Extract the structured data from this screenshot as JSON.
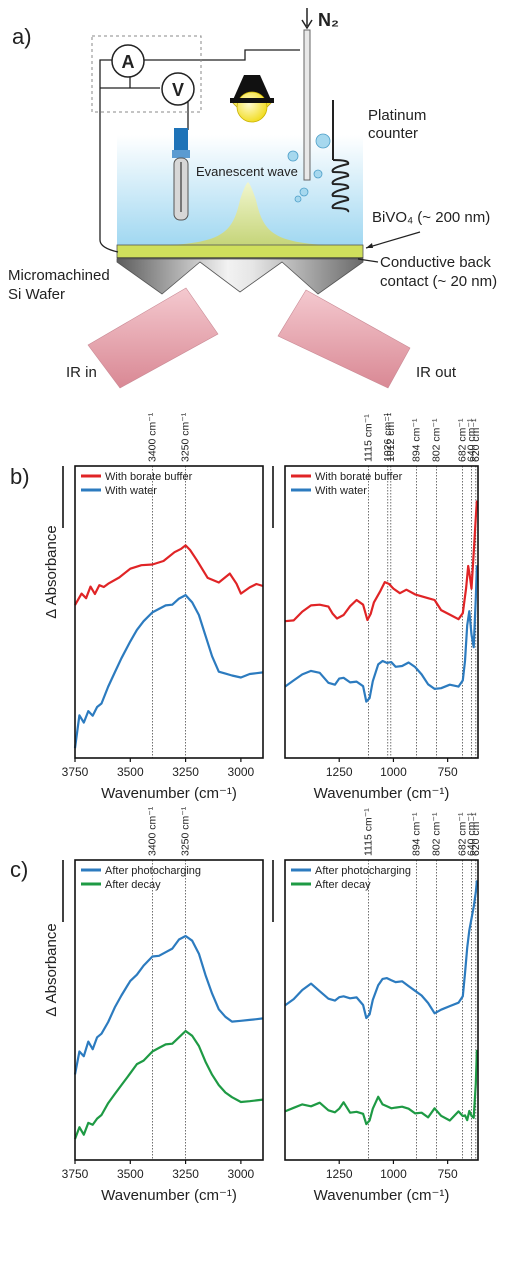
{
  "panels": {
    "a": "a)",
    "b": "b)",
    "c": "c)"
  },
  "schematic": {
    "ammeter": "A",
    "voltmeter": "V",
    "gas": "N₂",
    "counter": [
      "Platinum",
      "counter"
    ],
    "wave": "Evanescent wave",
    "film": "BiVO₄ (~ 200 nm)",
    "contact": [
      "Conductive back",
      "contact (~ 20 nm)"
    ],
    "wafer": [
      "Micromachined",
      "Si Wafer"
    ],
    "ir_in": "IR in",
    "ir_out": "IR out",
    "colors": {
      "liquid": "#bfe6f7",
      "film": "#cfdf5c",
      "lamp": "#f2e23a",
      "beam": "#e7a5ae",
      "electrode": "#1e73b8"
    }
  },
  "chart_data": [
    {
      "id": "b-left",
      "type": "line",
      "xlim": [
        3750,
        2900
      ],
      "xticks": [
        3750,
        3500,
        3250,
        3000
      ],
      "xlabel": "Wavenumber (cm⁻¹)",
      "ylabel": "Δ Absorbance",
      "scale_bar": true,
      "ref_lines": [
        {
          "x": 3400,
          "label": "3400 cm⁻¹"
        },
        {
          "x": 3250,
          "label": "3250 cm⁻¹"
        }
      ],
      "legend": {
        "position": "top-left"
      },
      "series": [
        {
          "name": "With borate buffer",
          "color": "#e02426",
          "x": [
            3750,
            3720,
            3700,
            3680,
            3660,
            3640,
            3620,
            3600,
            3550,
            3500,
            3450,
            3400,
            3350,
            3300,
            3270,
            3250,
            3230,
            3200,
            3150,
            3100,
            3050,
            3020,
            3000,
            2960,
            2930,
            2900
          ],
          "y": [
            0.56,
            0.6,
            0.58,
            0.62,
            0.6,
            0.63,
            0.62,
            0.64,
            0.66,
            0.69,
            0.7,
            0.71,
            0.72,
            0.75,
            0.77,
            0.78,
            0.76,
            0.72,
            0.66,
            0.64,
            0.67,
            0.64,
            0.6,
            0.62,
            0.63,
            0.63
          ]
        },
        {
          "name": "With water",
          "color": "#2c7bbf",
          "x": [
            3750,
            3730,
            3710,
            3690,
            3670,
            3650,
            3630,
            3600,
            3570,
            3540,
            3500,
            3470,
            3440,
            3400,
            3370,
            3340,
            3310,
            3280,
            3250,
            3220,
            3190,
            3160,
            3130,
            3100,
            3070,
            3040,
            3000,
            2960,
            2930,
            2900
          ],
          "y": [
            0.02,
            0.14,
            0.12,
            0.16,
            0.14,
            0.18,
            0.19,
            0.25,
            0.3,
            0.36,
            0.42,
            0.46,
            0.5,
            0.53,
            0.54,
            0.55,
            0.56,
            0.58,
            0.59,
            0.57,
            0.52,
            0.44,
            0.36,
            0.31,
            0.3,
            0.29,
            0.29,
            0.3,
            0.3,
            0.3
          ]
        }
      ]
    },
    {
      "id": "b-right",
      "type": "line",
      "xlim": [
        1500,
        610
      ],
      "xticks": [
        1250,
        1000,
        750
      ],
      "xlabel": "Wavenumber (cm⁻¹)",
      "scale_bar": true,
      "ref_lines": [
        {
          "x": 1115,
          "label": "1115 cm⁻¹"
        },
        {
          "x": 1026,
          "label": "1026 cm⁻¹"
        },
        {
          "x": 1012,
          "label": "1012 cm⁻¹"
        },
        {
          "x": 894,
          "label": "894 cm⁻¹"
        },
        {
          "x": 802,
          "label": "802 cm⁻¹"
        },
        {
          "x": 682,
          "label": "682 cm⁻¹"
        },
        {
          "x": 640,
          "label": "640 cm⁻¹"
        },
        {
          "x": 620,
          "label": "620 cm⁻¹"
        }
      ],
      "legend": {
        "position": "top-left"
      },
      "series": [
        {
          "name": "With borate buffer",
          "color": "#e02426",
          "x": [
            1500,
            1460,
            1420,
            1380,
            1340,
            1300,
            1280,
            1260,
            1230,
            1200,
            1170,
            1140,
            1120,
            1105,
            1090,
            1060,
            1040,
            1020,
            1000,
            970,
            940,
            900,
            870,
            840,
            810,
            780,
            740,
            700,
            680,
            665,
            655,
            648,
            640,
            630,
            620,
            615
          ],
          "y": [
            0.5,
            0.5,
            0.53,
            0.55,
            0.56,
            0.55,
            0.52,
            0.51,
            0.52,
            0.55,
            0.57,
            0.56,
            0.5,
            0.52,
            0.57,
            0.61,
            0.64,
            0.63,
            0.62,
            0.6,
            0.61,
            0.6,
            0.59,
            0.58,
            0.57,
            0.54,
            0.52,
            0.5,
            0.53,
            0.62,
            0.7,
            0.66,
            0.62,
            0.75,
            0.88,
            0.95
          ]
        },
        {
          "name": "With water",
          "color": "#2c7bbf",
          "x": [
            1500,
            1460,
            1420,
            1380,
            1340,
            1300,
            1270,
            1250,
            1230,
            1200,
            1170,
            1140,
            1125,
            1110,
            1095,
            1070,
            1050,
            1030,
            1010,
            990,
            960,
            930,
            900,
            870,
            840,
            810,
            780,
            740,
            700,
            680,
            670,
            660,
            650,
            640,
            630,
            620,
            615
          ],
          "y": [
            0.25,
            0.27,
            0.3,
            0.31,
            0.3,
            0.27,
            0.26,
            0.28,
            0.28,
            0.27,
            0.27,
            0.25,
            0.2,
            0.21,
            0.27,
            0.33,
            0.35,
            0.34,
            0.34,
            0.33,
            0.33,
            0.34,
            0.32,
            0.3,
            0.26,
            0.24,
            0.25,
            0.26,
            0.25,
            0.27,
            0.35,
            0.48,
            0.53,
            0.45,
            0.4,
            0.58,
            0.7
          ]
        }
      ]
    },
    {
      "id": "c-left",
      "type": "line",
      "xlim": [
        3750,
        2900
      ],
      "xticks": [
        3750,
        3500,
        3250,
        3000
      ],
      "xlabel": "Wavenumber (cm⁻¹)",
      "ylabel": "Δ Absorbance",
      "scale_bar": true,
      "ref_lines": [
        {
          "x": 3400,
          "label": "3400 cm⁻¹"
        },
        {
          "x": 3250,
          "label": "3250 cm⁻¹"
        }
      ],
      "legend": {
        "position": "top-left"
      },
      "series": [
        {
          "name": "After photocharging",
          "color": "#2c7bbf",
          "x": [
            3750,
            3730,
            3710,
            3690,
            3670,
            3650,
            3630,
            3600,
            3570,
            3540,
            3500,
            3470,
            3440,
            3400,
            3370,
            3340,
            3310,
            3280,
            3250,
            3220,
            3190,
            3160,
            3130,
            3100,
            3070,
            3040,
            3000,
            2960,
            2930,
            2900
          ],
          "y": [
            0.3,
            0.38,
            0.36,
            0.41,
            0.39,
            0.43,
            0.44,
            0.49,
            0.54,
            0.58,
            0.63,
            0.66,
            0.69,
            0.72,
            0.73,
            0.74,
            0.75,
            0.78,
            0.8,
            0.78,
            0.73,
            0.66,
            0.59,
            0.53,
            0.5,
            0.49,
            0.49,
            0.49,
            0.5,
            0.5
          ]
        },
        {
          "name": "After decay",
          "color": "#1e9a44",
          "x": [
            3750,
            3730,
            3710,
            3690,
            3670,
            3650,
            3630,
            3600,
            3570,
            3540,
            3500,
            3470,
            3440,
            3400,
            3370,
            3340,
            3310,
            3280,
            3250,
            3220,
            3190,
            3160,
            3130,
            3100,
            3070,
            3040,
            3000,
            2960,
            2930,
            2900
          ],
          "y": [
            0.06,
            0.1,
            0.08,
            0.12,
            0.11,
            0.14,
            0.15,
            0.19,
            0.22,
            0.26,
            0.3,
            0.33,
            0.35,
            0.38,
            0.39,
            0.4,
            0.41,
            0.43,
            0.45,
            0.44,
            0.4,
            0.34,
            0.29,
            0.26,
            0.23,
            0.21,
            0.2,
            0.2,
            0.2,
            0.2
          ]
        }
      ]
    },
    {
      "id": "c-right",
      "type": "line",
      "xlim": [
        1500,
        610
      ],
      "xticks": [
        1250,
        1000,
        750
      ],
      "xlabel": "Wavenumber (cm⁻¹)",
      "scale_bar": true,
      "ref_lines": [
        {
          "x": 1115,
          "label": "1115 cm⁻¹"
        },
        {
          "x": 894,
          "label": "894 cm⁻¹"
        },
        {
          "x": 802,
          "label": "802 cm⁻¹"
        },
        {
          "x": 682,
          "label": "682 cm⁻¹"
        },
        {
          "x": 640,
          "label": "640 cm⁻¹"
        },
        {
          "x": 620,
          "label": "620 cm⁻¹"
        }
      ],
      "legend": {
        "position": "top-left"
      },
      "series": [
        {
          "name": "After photocharging",
          "color": "#2c7bbf",
          "x": [
            1500,
            1460,
            1420,
            1380,
            1340,
            1300,
            1270,
            1250,
            1230,
            1200,
            1170,
            1140,
            1125,
            1110,
            1095,
            1070,
            1050,
            1030,
            1010,
            990,
            960,
            930,
            900,
            870,
            840,
            810,
            780,
            740,
            700,
            680,
            670,
            660,
            650,
            640,
            630,
            620,
            615
          ],
          "y": [
            0.55,
            0.57,
            0.6,
            0.62,
            0.6,
            0.57,
            0.56,
            0.58,
            0.58,
            0.57,
            0.57,
            0.55,
            0.5,
            0.51,
            0.57,
            0.62,
            0.64,
            0.64,
            0.64,
            0.63,
            0.63,
            0.62,
            0.6,
            0.58,
            0.55,
            0.52,
            0.53,
            0.54,
            0.56,
            0.58,
            0.66,
            0.75,
            0.82,
            0.86,
            0.9,
            0.96,
            1.0
          ]
        },
        {
          "name": "After decay",
          "color": "#1e9a44",
          "x": [
            1500,
            1460,
            1420,
            1380,
            1340,
            1300,
            1270,
            1250,
            1230,
            1200,
            1170,
            1140,
            1125,
            1110,
            1095,
            1070,
            1050,
            1030,
            1010,
            990,
            960,
            930,
            900,
            870,
            840,
            810,
            780,
            740,
            700,
            680,
            670,
            660,
            650,
            640,
            630,
            620,
            615
          ],
          "y": [
            0.16,
            0.17,
            0.19,
            0.18,
            0.19,
            0.17,
            0.16,
            0.17,
            0.19,
            0.16,
            0.16,
            0.15,
            0.12,
            0.13,
            0.17,
            0.21,
            0.19,
            0.18,
            0.17,
            0.18,
            0.18,
            0.17,
            0.15,
            0.16,
            0.14,
            0.17,
            0.15,
            0.13,
            0.16,
            0.14,
            0.15,
            0.13,
            0.16,
            0.15,
            0.14,
            0.26,
            0.38
          ]
        }
      ]
    }
  ]
}
